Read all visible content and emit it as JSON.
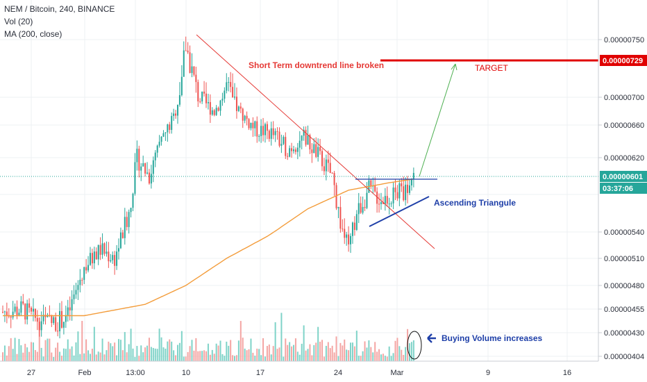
{
  "header": {
    "symbol_line": "NEM / Bitcoin, 240, BINANCE",
    "vol_line": "Vol (20)",
    "ma_line": "MA (200, close)"
  },
  "colors": {
    "up": "#26a69a",
    "down": "#ef5350",
    "vol_up": "#7fd3c8",
    "vol_down": "#f4a5a3",
    "ma": "#f39c3a",
    "downtrend": "#e53935",
    "target": "#e00000",
    "triangle": "#1e3fa8",
    "arrow": "#4caf50",
    "grid": "#eef0f3",
    "price_tag": "#26a69a"
  },
  "annotations": {
    "downtrend_label": "Short Term downtrend line broken",
    "target_label": "TARGET",
    "triangle_label": "Ascending Triangule",
    "volume_label": "Buying Volume increases",
    "volume_arrow_icon": "left-arrow-icon"
  },
  "price_scale": {
    "ticks": [
      "0.00000750",
      "0.00000700",
      "0.00000660",
      "0.00000620",
      "0.00000540",
      "0.00000510",
      "0.00000480",
      "0.00000455",
      "0.00000430",
      "0.00000404"
    ],
    "target_tag": "0.00000729",
    "last_price_tag": "0.00000601",
    "countdown_tag": "03:37:06"
  },
  "time_scale": {
    "ticks": [
      "27",
      "Feb",
      "13:00",
      "10",
      "17",
      "24",
      "Mar",
      "9",
      "16"
    ]
  },
  "chart_data": {
    "type": "candlestick",
    "title": "NEM / Bitcoin, 240, BINANCE",
    "price_anchors": [
      [
        0,
        4.52e-06
      ],
      [
        10,
        4.55e-06
      ],
      [
        15,
        4.45e-06
      ],
      [
        25,
        4.4e-06
      ],
      [
        32,
        4.48e-06
      ],
      [
        40,
        5e-06
      ],
      [
        48,
        5.2e-06
      ],
      [
        55,
        5.1e-06
      ],
      [
        62,
        5.6e-06
      ],
      [
        66,
        6.2e-06
      ],
      [
        72,
        6e-06
      ],
      [
        78,
        6.4e-06
      ],
      [
        84,
        6.7e-06
      ],
      [
        90,
        7.45e-06
      ],
      [
        96,
        7e-06
      ],
      [
        104,
        6.8e-06
      ],
      [
        110,
        7.1e-06
      ],
      [
        116,
        6.8e-06
      ],
      [
        124,
        6.55e-06
      ],
      [
        132,
        6.5e-06
      ],
      [
        140,
        6.3e-06
      ],
      [
        148,
        6.45e-06
      ],
      [
        156,
        6.2e-06
      ],
      [
        162,
        6e-06
      ],
      [
        166,
        5.5e-06
      ],
      [
        170,
        5.2e-06
      ],
      [
        174,
        5.6e-06
      ],
      [
        180,
        5.85e-06
      ],
      [
        186,
        5.75e-06
      ],
      [
        192,
        5.8e-06
      ],
      [
        198,
        5.85e-06
      ],
      [
        202,
        6.01e-06
      ]
    ],
    "candle_count": 203,
    "ma200_anchors": [
      [
        0,
        4.48e-06
      ],
      [
        40,
        4.48e-06
      ],
      [
        70,
        4.6e-06
      ],
      [
        90,
        4.8e-06
      ],
      [
        110,
        5.1e-06
      ],
      [
        130,
        5.35e-06
      ],
      [
        150,
        5.65e-06
      ],
      [
        170,
        5.85e-06
      ],
      [
        190,
        5.93e-06
      ],
      [
        202,
        5.97e-06
      ]
    ],
    "volume_spike_index": 202,
    "last_price": 6.01e-06,
    "target_price": 7.29e-06,
    "ylabel": "",
    "xlabel": ""
  }
}
